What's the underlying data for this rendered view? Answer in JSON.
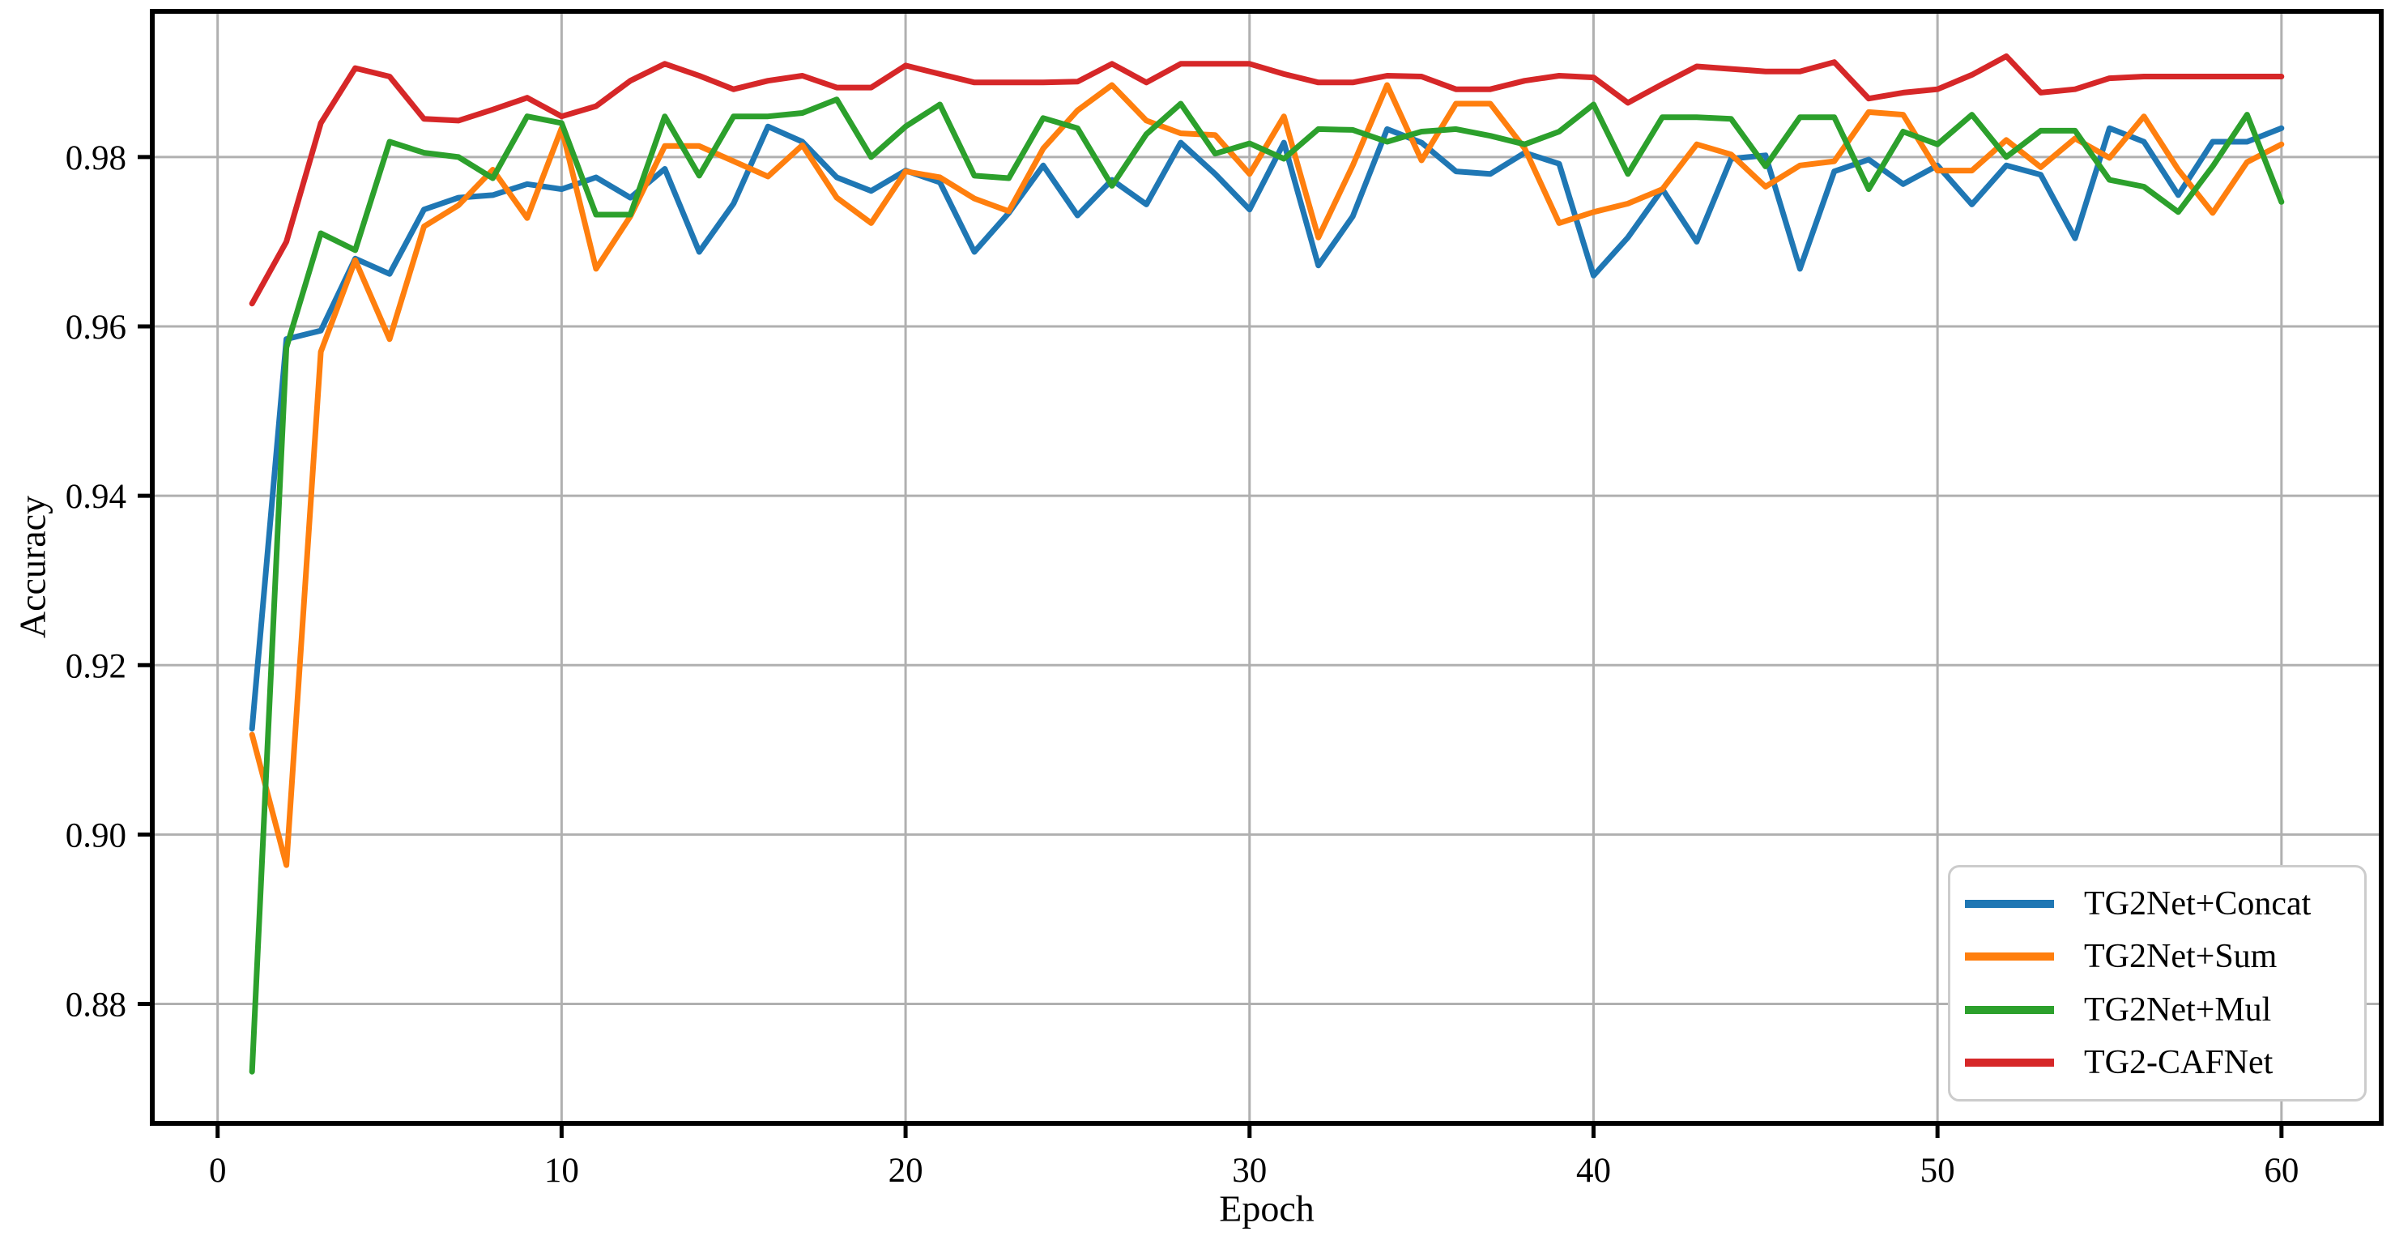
{
  "figure": {
    "background": "#ffffff",
    "grid_color": "#b0b0b0",
    "spine_color": "#000000"
  },
  "chart_data": {
    "type": "line",
    "title": "",
    "xlabel": "Epoch",
    "ylabel": "Accuracy",
    "grid": true,
    "legend_position": "lower right",
    "xticks": [
      0,
      10,
      20,
      30,
      40,
      50,
      60
    ],
    "yticks": [
      0.88,
      0.9,
      0.92,
      0.94,
      0.96,
      0.98
    ],
    "xlim": [
      -1.9,
      62.9
    ],
    "ylim": [
      0.8659,
      0.9972
    ],
    "x": [
      1,
      2,
      3,
      4,
      5,
      6,
      7,
      8,
      9,
      10,
      11,
      12,
      13,
      14,
      15,
      16,
      17,
      18,
      19,
      20,
      21,
      22,
      23,
      24,
      25,
      26,
      27,
      28,
      29,
      30,
      31,
      32,
      33,
      34,
      35,
      36,
      37,
      38,
      39,
      40,
      41,
      42,
      43,
      44,
      45,
      46,
      47,
      48,
      49,
      50,
      51,
      52,
      53,
      54,
      55,
      56,
      57,
      58,
      59,
      60
    ],
    "series": [
      {
        "name": "TG2Net+Concat",
        "color": "#1f77b4",
        "values": [
          0.9125,
          0.9585,
          0.9595,
          0.968,
          0.9662,
          0.9738,
          0.9752,
          0.9755,
          0.9768,
          0.9762,
          0.9776,
          0.9752,
          0.9786,
          0.9688,
          0.9745,
          0.9836,
          0.9818,
          0.9776,
          0.976,
          0.9784,
          0.977,
          0.9688,
          0.9734,
          0.979,
          0.9731,
          0.9773,
          0.9744,
          0.9817,
          0.978,
          0.9738,
          0.9817,
          0.9672,
          0.973,
          0.9833,
          0.9817,
          0.9783,
          0.978,
          0.9805,
          0.9792,
          0.966,
          0.9705,
          0.9762,
          0.97,
          0.9798,
          0.9802,
          0.9668,
          0.9783,
          0.9797,
          0.9768,
          0.979,
          0.9744,
          0.979,
          0.9779,
          0.9704,
          0.9834,
          0.9818,
          0.9755,
          0.9818,
          0.9818,
          0.9834
        ]
      },
      {
        "name": "TG2Net+Sum",
        "color": "#ff7f0e",
        "values": [
          0.9118,
          0.8964,
          0.957,
          0.9678,
          0.9585,
          0.9718,
          0.9743,
          0.9785,
          0.9728,
          0.9834,
          0.9668,
          0.973,
          0.9813,
          0.9813,
          0.9795,
          0.9777,
          0.9814,
          0.9752,
          0.9722,
          0.9783,
          0.9776,
          0.9751,
          0.9736,
          0.981,
          0.9855,
          0.9885,
          0.9843,
          0.9828,
          0.9826,
          0.978,
          0.9848,
          0.9705,
          0.979,
          0.9885,
          0.9796,
          0.9863,
          0.9863,
          0.981,
          0.9722,
          0.9735,
          0.9745,
          0.9762,
          0.9815,
          0.9803,
          0.9765,
          0.979,
          0.9795,
          0.9853,
          0.985,
          0.9784,
          0.9784,
          0.982,
          0.9788,
          0.9822,
          0.9799,
          0.9848,
          0.9785,
          0.9734,
          0.9794,
          0.9815
        ]
      },
      {
        "name": "TG2Net+Mul",
        "color": "#2ca02c",
        "values": [
          0.872,
          0.9575,
          0.971,
          0.969,
          0.9818,
          0.9805,
          0.98,
          0.9775,
          0.9848,
          0.984,
          0.9732,
          0.9732,
          0.9848,
          0.9778,
          0.9848,
          0.9848,
          0.9852,
          0.9868,
          0.98,
          0.9836,
          0.9862,
          0.9778,
          0.9775,
          0.9846,
          0.9834,
          0.9766,
          0.9827,
          0.9863,
          0.9804,
          0.9816,
          0.9798,
          0.9833,
          0.9832,
          0.9818,
          0.983,
          0.9833,
          0.9825,
          0.9815,
          0.983,
          0.9862,
          0.978,
          0.9847,
          0.9847,
          0.9845,
          0.9789,
          0.9847,
          0.9847,
          0.9762,
          0.983,
          0.9815,
          0.985,
          0.98,
          0.9831,
          0.9831,
          0.9773,
          0.9765,
          0.9735,
          0.9789,
          0.985,
          0.9747
        ]
      },
      {
        "name": "TG2-CAFNet",
        "color": "#d62728",
        "values": [
          0.9627,
          0.97,
          0.984,
          0.9905,
          0.9895,
          0.9845,
          0.9843,
          0.9856,
          0.987,
          0.9848,
          0.986,
          0.989,
          0.991,
          0.9896,
          0.988,
          0.989,
          0.9896,
          0.9882,
          0.9882,
          0.9908,
          0.9898,
          0.9888,
          0.9888,
          0.9888,
          0.9889,
          0.991,
          0.9888,
          0.991,
          0.991,
          0.991,
          0.9898,
          0.9888,
          0.9888,
          0.9896,
          0.9895,
          0.988,
          0.988,
          0.989,
          0.9896,
          0.9894,
          0.9864,
          0.9886,
          0.9907,
          0.9904,
          0.9901,
          0.9901,
          0.9912,
          0.9869,
          0.9876,
          0.988,
          0.9897,
          0.9919,
          0.9876,
          0.988,
          0.9893,
          0.9895,
          0.9895,
          0.9895,
          0.9895,
          0.9895
        ]
      }
    ]
  }
}
